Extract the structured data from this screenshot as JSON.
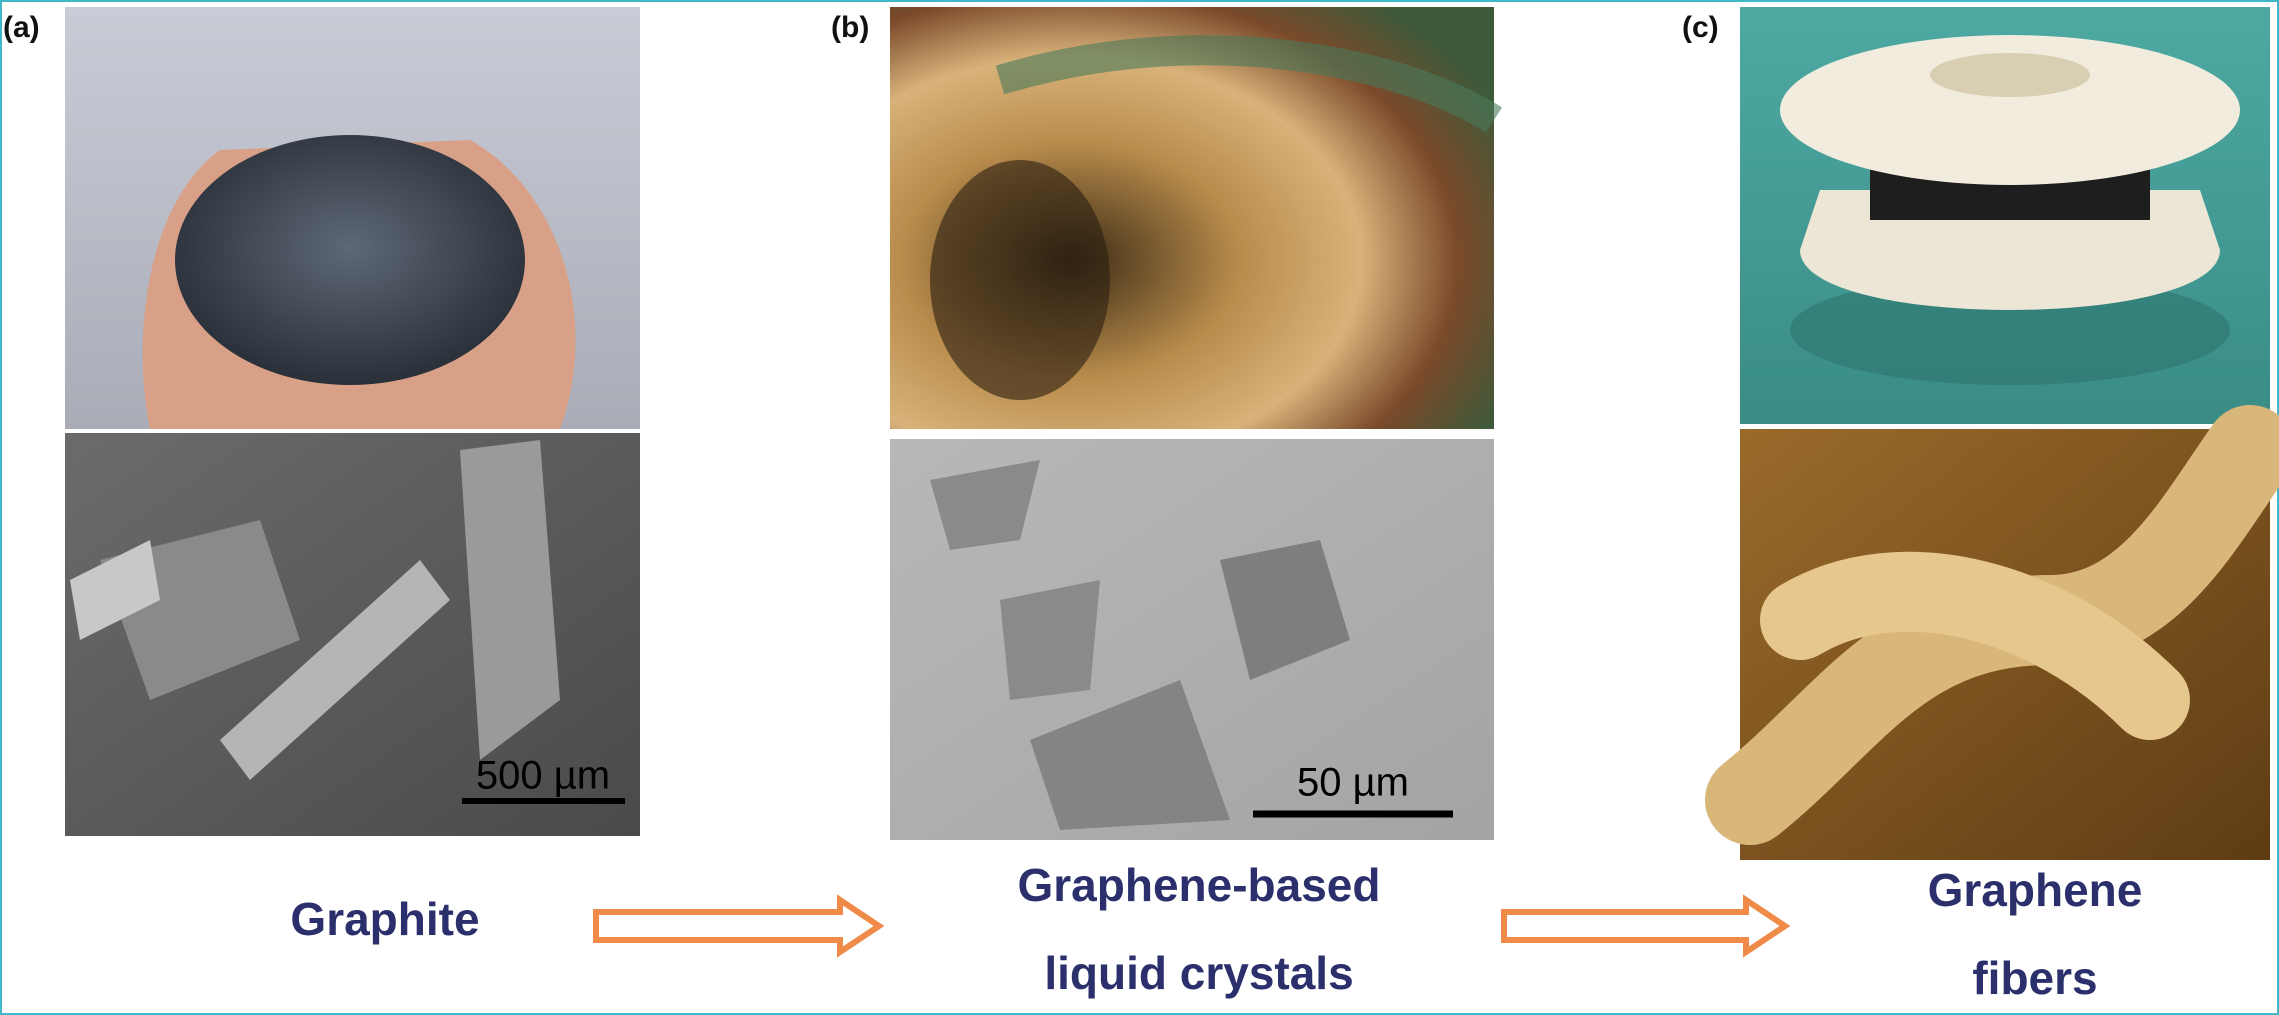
{
  "panels": [
    {
      "label": "(a)",
      "scale_bar": "500 µm",
      "caption": [
        "Graphite"
      ]
    },
    {
      "label": "(b)",
      "scale_bar": "50 µm",
      "caption": [
        "Graphene-based",
        "liquid crystals"
      ]
    },
    {
      "label": "(c)",
      "caption": [
        "Graphene",
        "fibers"
      ]
    }
  ]
}
